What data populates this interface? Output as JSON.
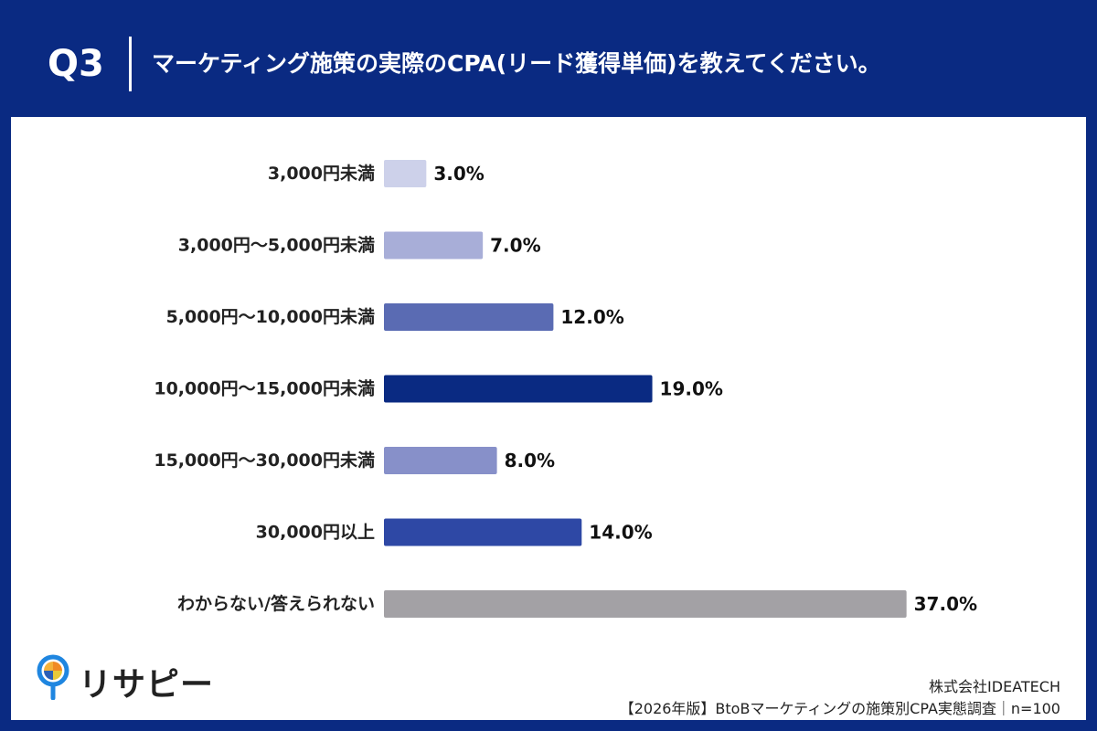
{
  "header": {
    "question_number": "Q3",
    "question_text": "マーケティング施策の実際のCPA(リード獲得単価)を教えてください。"
  },
  "chart_data": {
    "type": "bar",
    "orientation": "horizontal",
    "title": "",
    "xlabel": "",
    "ylabel": "",
    "xlim": [
      0,
      40
    ],
    "grid": false,
    "categories": [
      "3,000円未満",
      "3,000円〜5,000円未満",
      "5,000円〜10,000円未満",
      "10,000円〜15,000円未満",
      "15,000円〜30,000円未満",
      "30,000円以上",
      "わからない/答えられない"
    ],
    "values": [
      3.0,
      7.0,
      12.0,
      19.0,
      8.0,
      14.0,
      37.0
    ],
    "value_labels": [
      "3.0%",
      "7.0%",
      "12.0%",
      "19.0%",
      "8.0%",
      "14.0%",
      "37.0%"
    ],
    "colors": [
      "#cdd1ea",
      "#a8aed8",
      "#5a6bb3",
      "#0a2a82",
      "#8790c9",
      "#2e48a5",
      "#a3a1a5"
    ]
  },
  "footer": {
    "logo_text": "リサピー",
    "company": "株式会社IDEATECH",
    "survey": "【2026年版】BtoBマーケティングの施策別CPA実態調査｜n=100"
  },
  "colors": {
    "brand_navy": "#0a2a82",
    "panel_bg": "#ffffff",
    "text": "#222222"
  },
  "icons": {
    "logo": "pin-pie-icon"
  }
}
